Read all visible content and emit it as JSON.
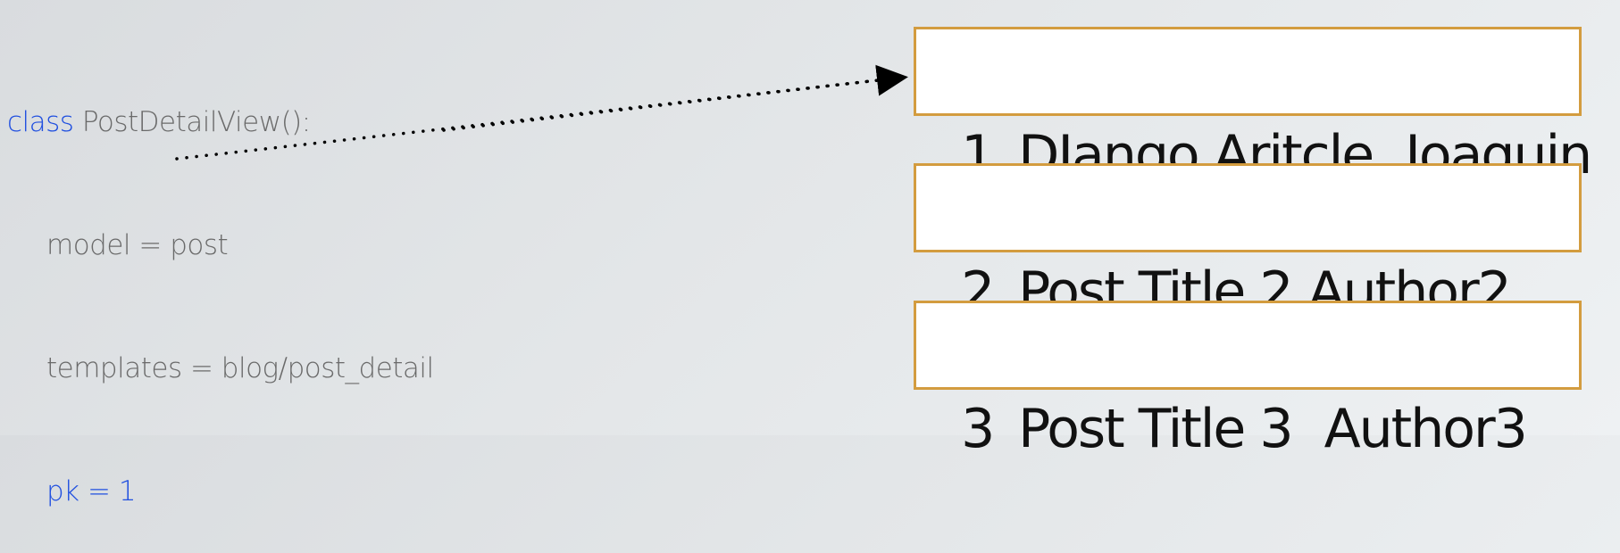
{
  "code": {
    "line1_keyword": "class",
    "line1_rest": " PostDetailView():",
    "line2": "model = post",
    "line3": "templates = blog/post_detail",
    "line4": "pk = 1"
  },
  "rows": [
    {
      "id": "1",
      "title": "DJango Aritcle",
      "author": "Joaquin"
    },
    {
      "id": "2",
      "title": "Post Title 2",
      "author": "Author2"
    },
    {
      "id": "3",
      "title": "Post Title 3",
      "author": "Author3"
    }
  ],
  "colors": {
    "keyword": "#1f4fe0",
    "code_text": "#6a6a6a",
    "row_border": "#d39c3f",
    "arrow": "#000000"
  }
}
